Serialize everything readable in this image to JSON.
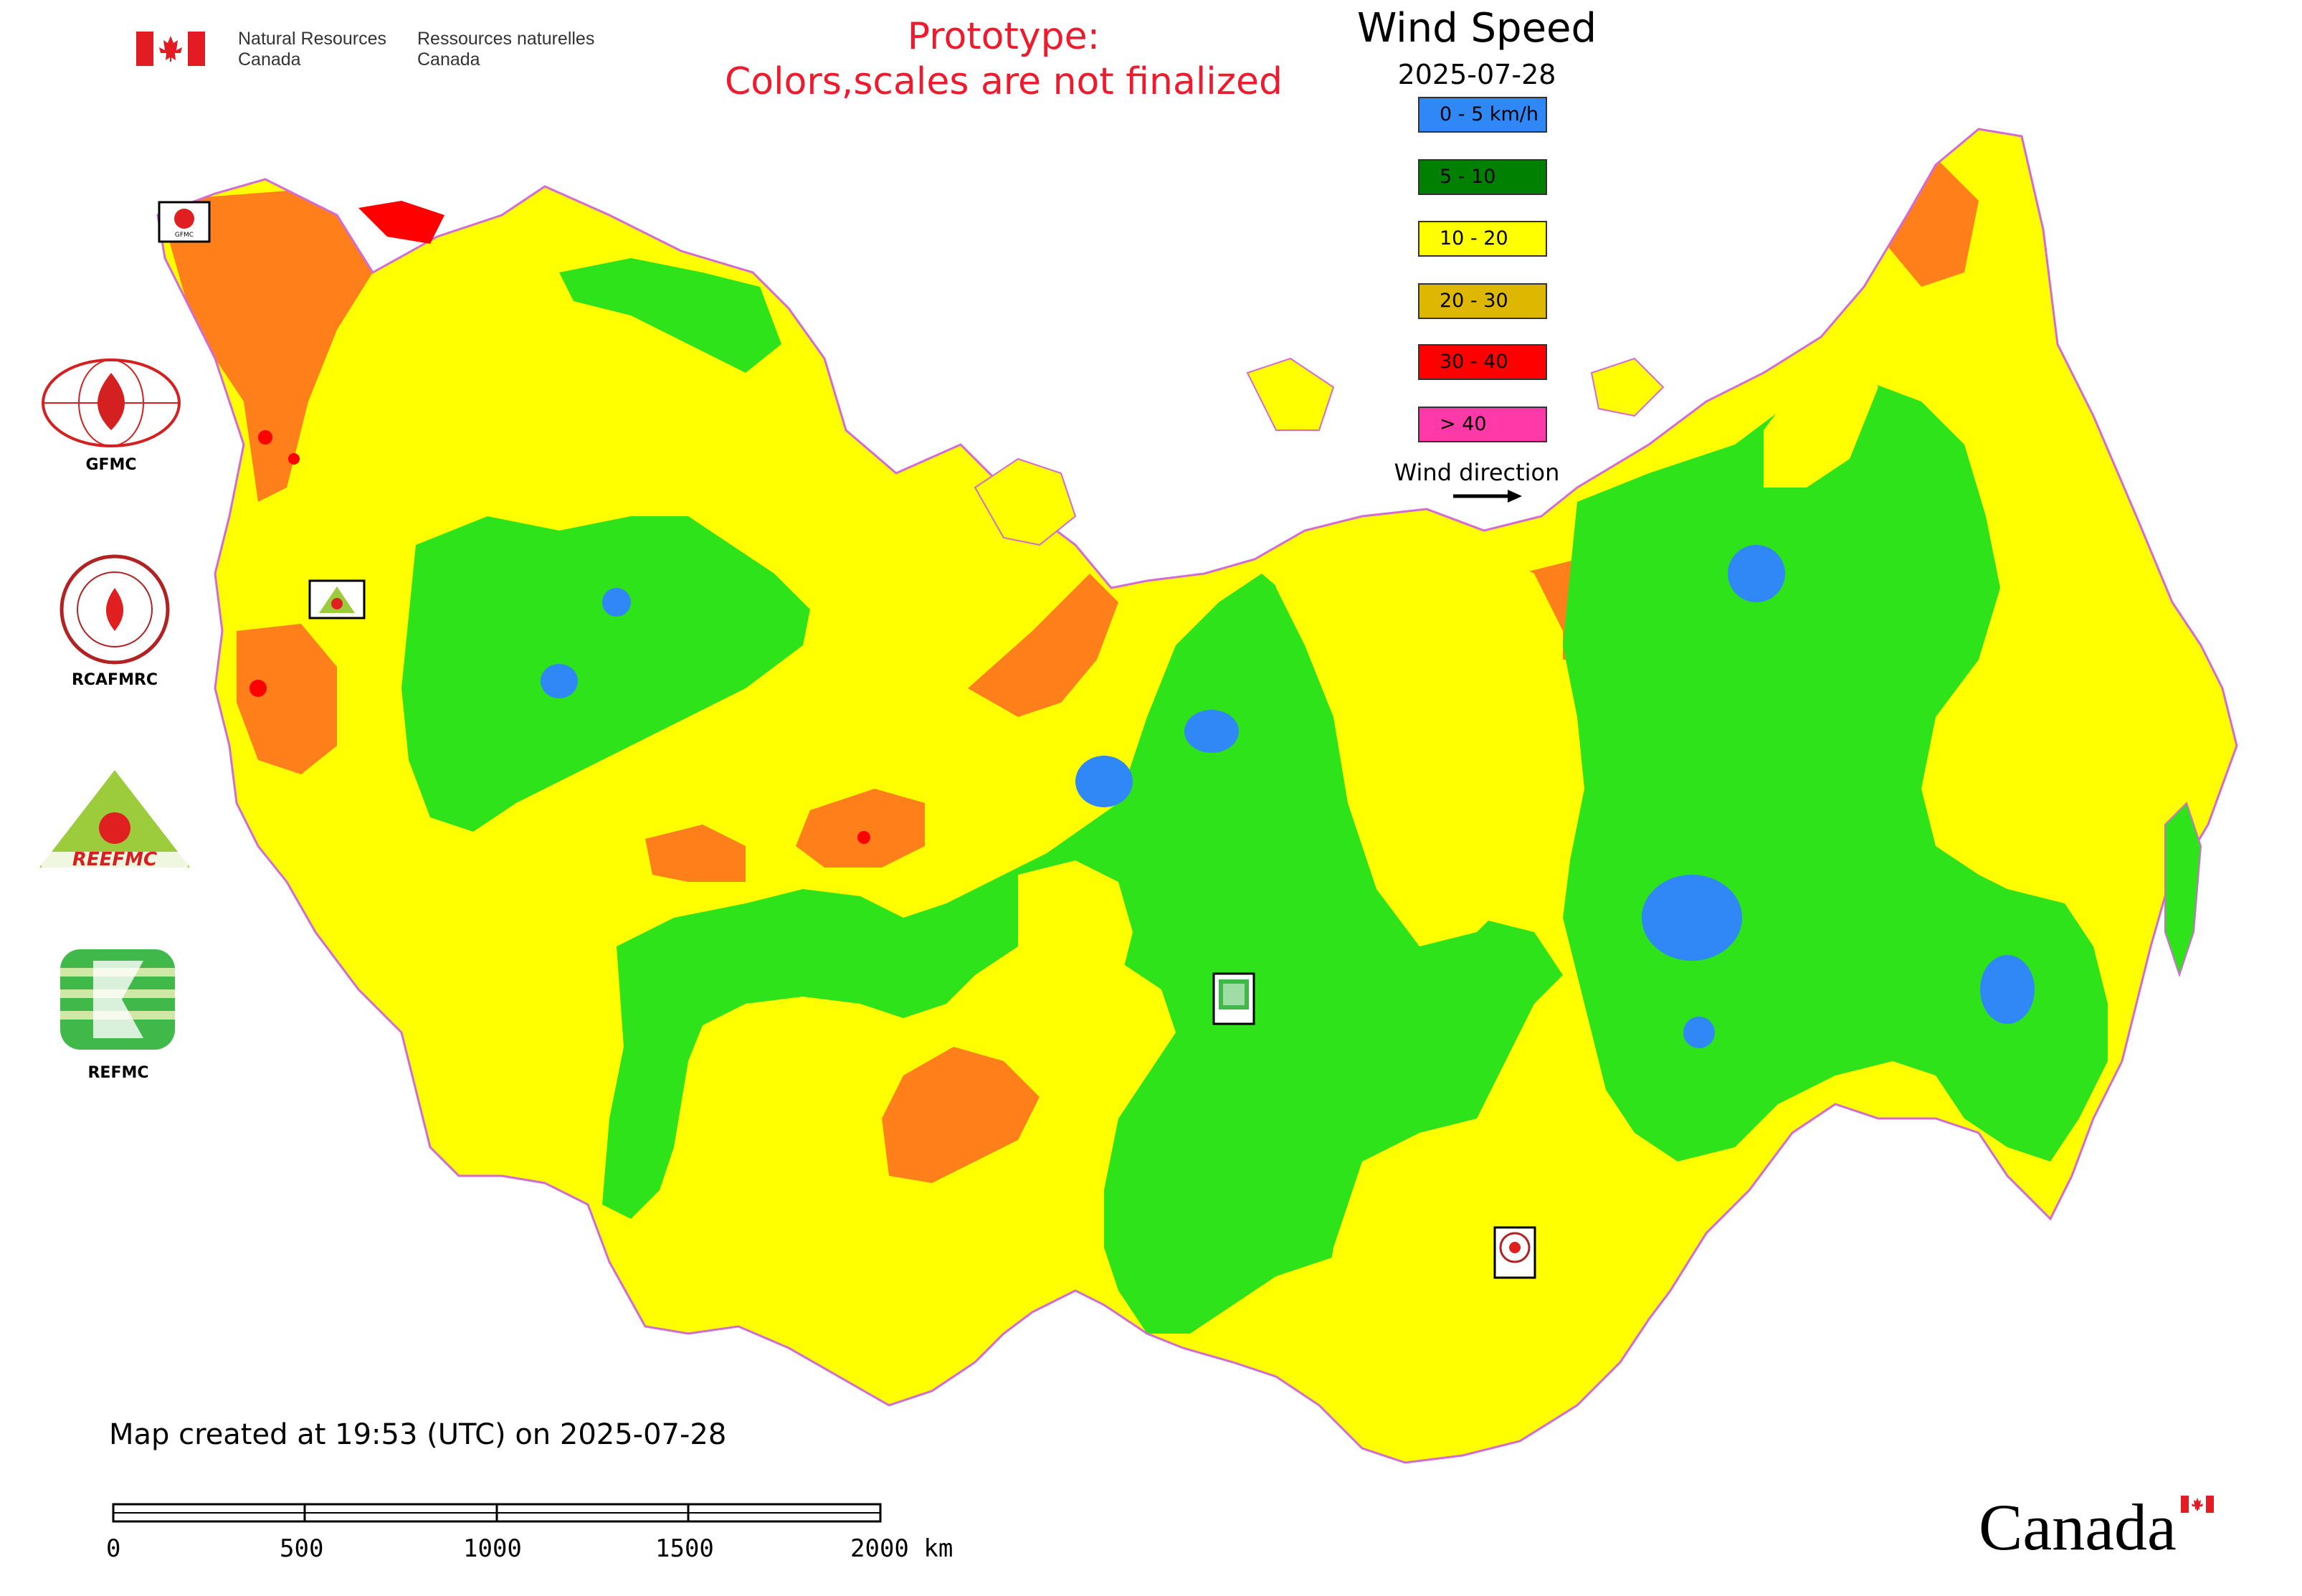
{
  "header": {
    "dept_en": [
      "Natural Resources",
      "Canada"
    ],
    "dept_fr": [
      "Ressources naturelles",
      "Canada"
    ],
    "prototype_lines": [
      "Prototype:",
      "Colors,scales are not finalized"
    ]
  },
  "legend": {
    "title": "Wind Speed",
    "date": "2025-07-28",
    "items": [
      {
        "label": "0 - 5 km/h",
        "color": "#2f88f5"
      },
      {
        "label": "5 - 10",
        "color": "#008000"
      },
      {
        "label": "10 - 20",
        "color": "#ffff00"
      },
      {
        "label": "20 - 30",
        "color": "#ddb700"
      },
      {
        "label": "30 - 40",
        "color": "#ff0000"
      },
      {
        "label": "> 40",
        "color": "#ff3aa8"
      }
    ],
    "wind_direction_label": "Wind direction"
  },
  "map_colors": {
    "low_wind": "#2f88f5",
    "green": "#2ee31a",
    "yellow": "#ffff00",
    "orange": "#ff7f1a",
    "red": "#ff0000",
    "border": "#d46ad4"
  },
  "centres": [
    {
      "name": "GFMC",
      "label": "GFMC"
    },
    {
      "name": "RCAFMRC",
      "label": "RCAFMRC"
    },
    {
      "name": "REEFMC",
      "label": "REEFMC"
    },
    {
      "name": "REFMC",
      "label": "REFMC"
    }
  ],
  "footer": {
    "created_text": "Map created at 19:53 (UTC) on 2025-07-28",
    "scale_labels": [
      "0",
      "500",
      "1000",
      "1500",
      "2000 km"
    ],
    "wordmark": "Canada"
  }
}
